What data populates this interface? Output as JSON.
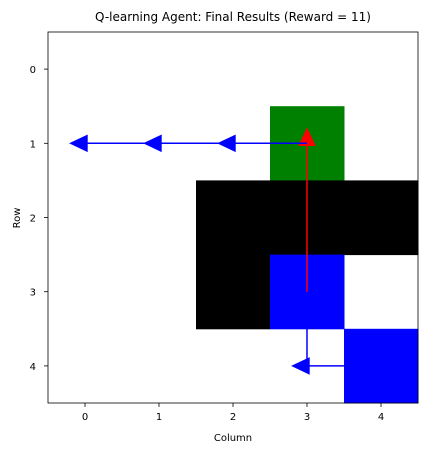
{
  "chart_data": {
    "type": "heatmap",
    "title": "Q-learning Agent: Final Results (Reward = 11)",
    "xlabel": "Column",
    "ylabel": "Row",
    "x_ticks": [
      0,
      1,
      2,
      3,
      4
    ],
    "y_ticks": [
      0,
      1,
      2,
      3,
      4
    ],
    "xlim": [
      -0.5,
      4.5
    ],
    "ylim": [
      4.5,
      -0.5
    ],
    "grid": false,
    "colors": {
      "empty": "#ffffff",
      "goal": "#008000",
      "wall": "#000000",
      "special": "#0000ff",
      "path": "#0000ff",
      "jump": "#ff0000"
    },
    "cells": [
      {
        "row": 1,
        "col": 3,
        "type": "goal"
      },
      {
        "row": 2,
        "col": 2,
        "type": "wall"
      },
      {
        "row": 2,
        "col": 3,
        "type": "wall"
      },
      {
        "row": 2,
        "col": 4,
        "type": "wall"
      },
      {
        "row": 3,
        "col": 2,
        "type": "wall"
      },
      {
        "row": 3,
        "col": 3,
        "type": "special"
      },
      {
        "row": 4,
        "col": 4,
        "type": "special"
      }
    ],
    "moves": [
      {
        "from": [
          4,
          4
        ],
        "to": [
          4,
          3
        ],
        "color": "path"
      },
      {
        "from": [
          4,
          3
        ],
        "to": [
          3,
          3
        ],
        "color": "path"
      },
      {
        "from": [
          3,
          3
        ],
        "to": [
          1,
          3
        ],
        "color": "jump"
      },
      {
        "from": [
          1,
          3
        ],
        "to": [
          1,
          2
        ],
        "color": "path"
      },
      {
        "from": [
          1,
          2
        ],
        "to": [
          1,
          1
        ],
        "color": "path"
      },
      {
        "from": [
          1,
          1
        ],
        "to": [
          1,
          0
        ],
        "color": "path"
      }
    ]
  }
}
